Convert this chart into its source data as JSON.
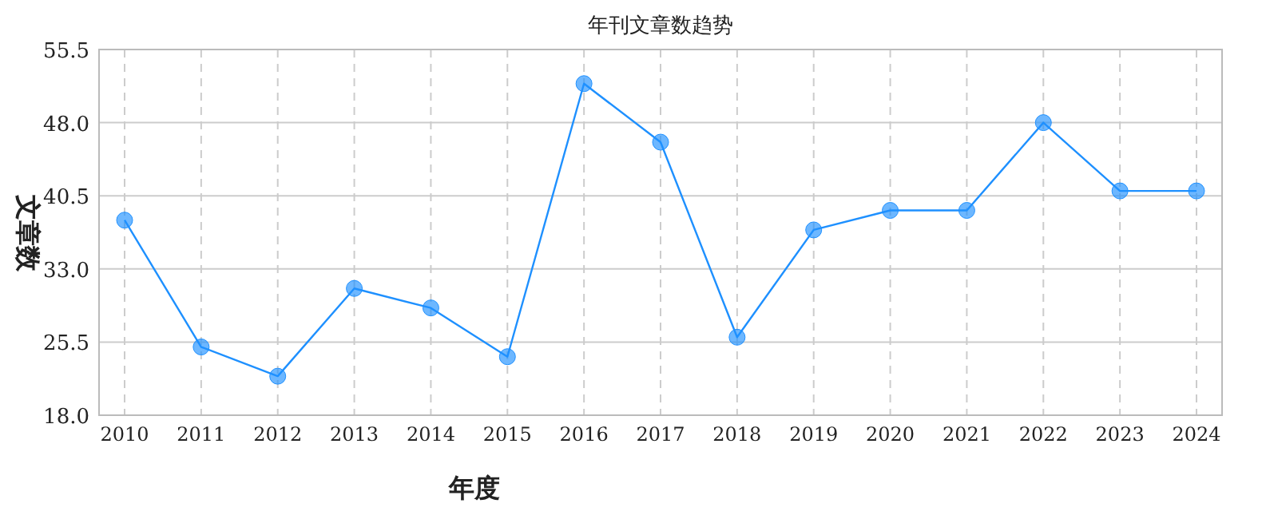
{
  "chart_data": {
    "type": "line",
    "title": "年刊文章数趋势",
    "xlabel": "年度",
    "ylabel": "文章数",
    "categories": [
      "2010",
      "2011",
      "2012",
      "2013",
      "2014",
      "2015",
      "2016",
      "2017",
      "2018",
      "2019",
      "2020",
      "2021",
      "2022",
      "2023",
      "2024"
    ],
    "values": [
      38,
      25,
      22,
      31,
      29,
      24,
      52,
      46,
      26,
      37,
      39,
      39,
      48,
      41,
      41
    ],
    "color": "#1e90ff",
    "marker": "circle",
    "grid": true,
    "ylim": [
      18,
      55.5
    ],
    "yticks": [
      {
        "value": 18,
        "label": "18.0"
      },
      {
        "value": 25.5,
        "label": "25.5"
      },
      {
        "value": 33,
        "label": "33.0"
      },
      {
        "value": 40.5,
        "label": "40.5"
      },
      {
        "value": 48,
        "label": "48.0"
      },
      {
        "value": 55.5,
        "label": "55.5"
      }
    ]
  }
}
